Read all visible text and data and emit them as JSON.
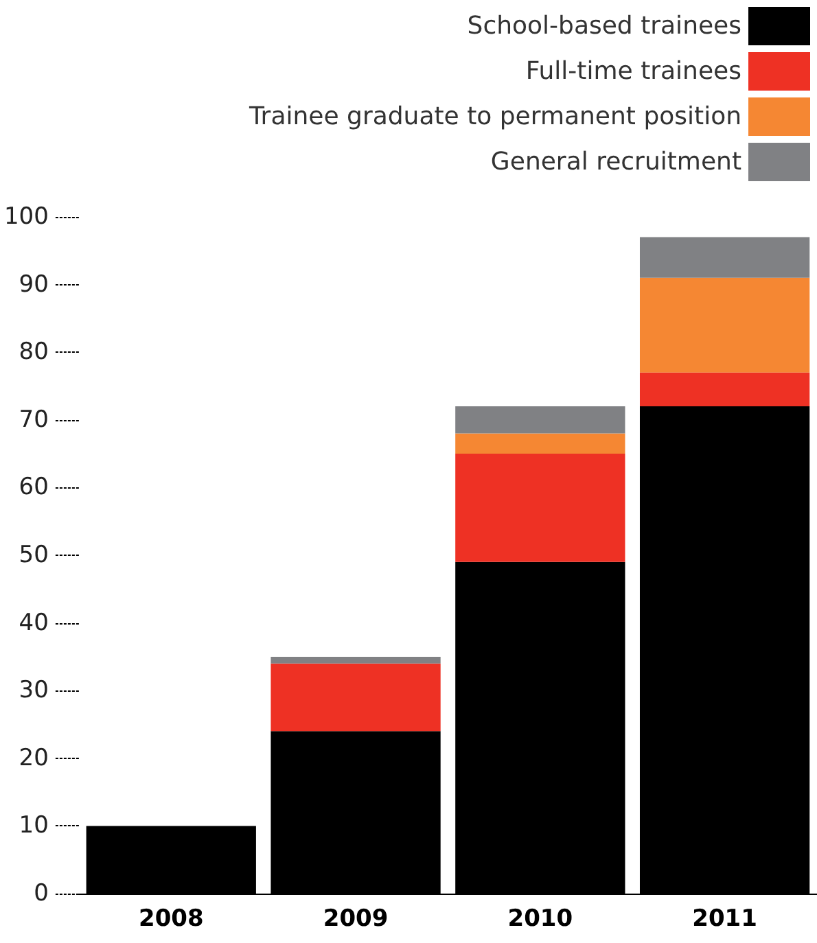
{
  "chart_data": {
    "type": "bar",
    "stacked": true,
    "categories": [
      "2008",
      "2009",
      "2010",
      "2011"
    ],
    "series": [
      {
        "name": "School-based trainees",
        "color": "#000000",
        "values": [
          10,
          24,
          49,
          72
        ]
      },
      {
        "name": "Full-time trainees",
        "color": "#ee3124",
        "values": [
          0,
          10,
          16,
          5
        ]
      },
      {
        "name": "Trainee graduate to permanent position",
        "color": "#f58733",
        "values": [
          0,
          0,
          3,
          14
        ]
      },
      {
        "name": "General recruitment",
        "color": "#808184",
        "values": [
          0,
          1,
          4,
          6
        ]
      }
    ],
    "ylim": [
      0,
      100
    ],
    "yticks": [
      0,
      10,
      20,
      30,
      40,
      50,
      60,
      70,
      80,
      90,
      100
    ],
    "grid": false,
    "legend": "top right"
  }
}
